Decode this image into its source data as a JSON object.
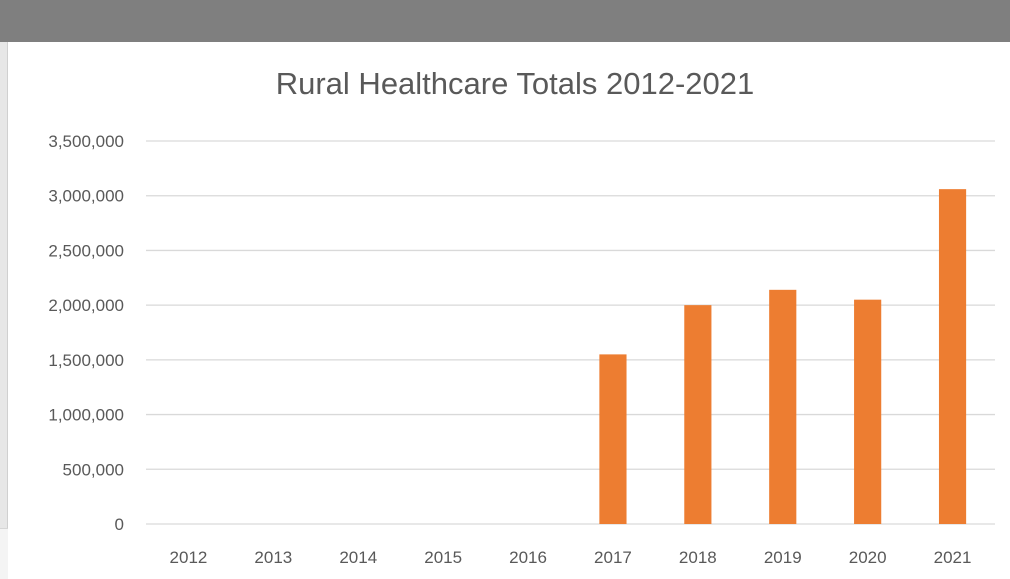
{
  "chart_data": {
    "type": "bar",
    "title": "Rural Healthcare Totals 2012-2021",
    "categories": [
      "2012",
      "2013",
      "2014",
      "2015",
      "2016",
      "2017",
      "2018",
      "2019",
      "2020",
      "2021"
    ],
    "values": [
      0,
      0,
      0,
      0,
      0,
      1550000,
      2000000,
      2140000,
      2050000,
      3060000
    ],
    "ylim": [
      0,
      3500000
    ],
    "yticks": [
      "0",
      "500,000",
      "1,000,000",
      "1,500,000",
      "2,000,000",
      "2,500,000",
      "3,000,000",
      "3,500,000"
    ],
    "ytick_values": [
      0,
      500000,
      1000000,
      1500000,
      2000000,
      2500000,
      3000000,
      3500000
    ],
    "grid": true,
    "bar_color": "#ed7d31",
    "grid_color": "#d9d9d9",
    "text_color": "#595959"
  }
}
